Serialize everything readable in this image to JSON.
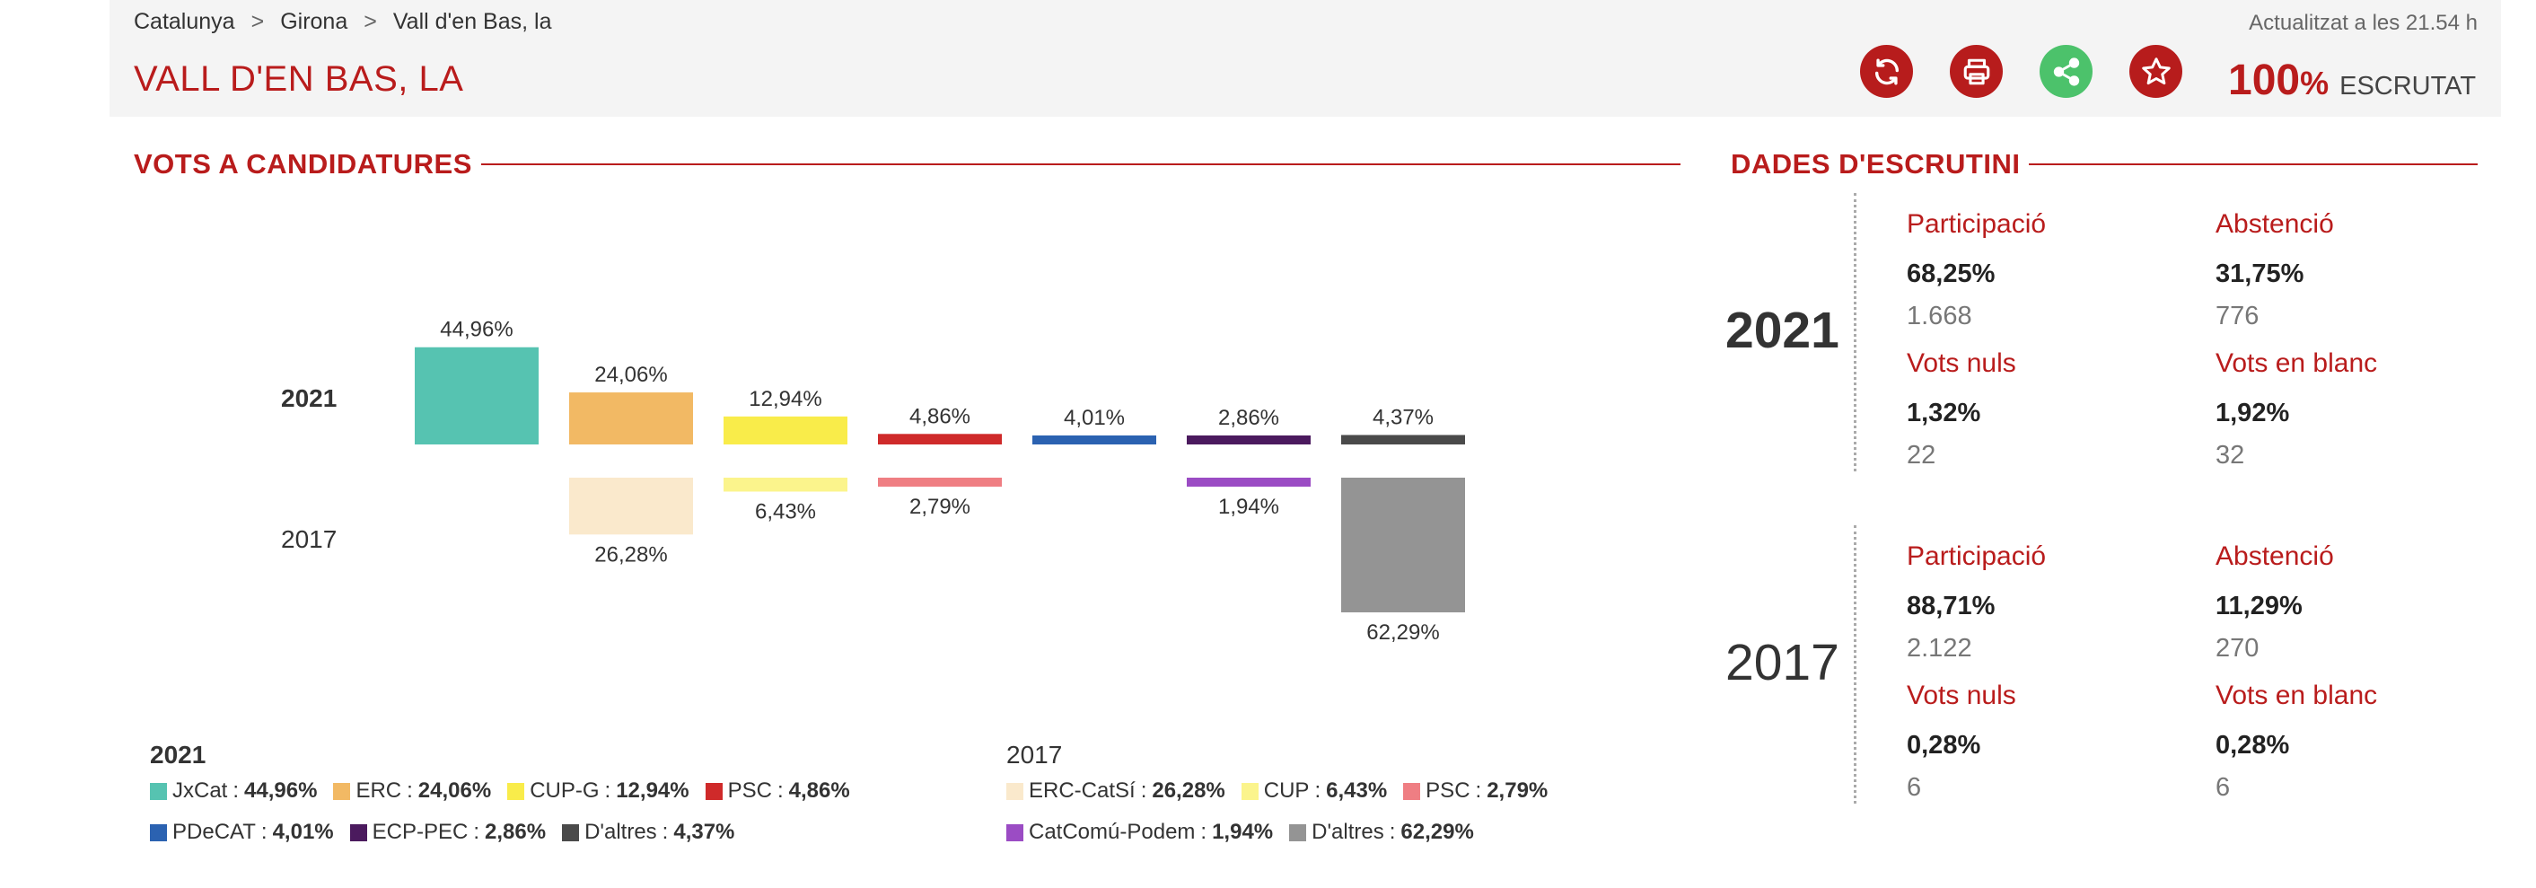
{
  "breadcrumb": [
    "Catalunya",
    "Girona",
    "Vall d'en Bas, la"
  ],
  "breadcrumb_sep": ">",
  "updated": "Actualitzat a les 21.54 h",
  "title": "VALL D'EN BAS, LA",
  "escrutat": {
    "value": "100",
    "unit": "%",
    "label": "ESCRUTAT"
  },
  "icons": [
    "refresh-icon",
    "print-icon",
    "share-icon",
    "star-icon"
  ],
  "sections": {
    "votes": "VOTS A CANDIDATURES",
    "scrutiny": "DADES D'ESCRUTINI"
  },
  "chart_data": {
    "type": "bar",
    "title": "VOTS A CANDIDATURES",
    "ylim": [
      0,
      62.29
    ],
    "series": [
      {
        "name": "2021",
        "entries": [
          {
            "party": "JxCat",
            "value": 44.96,
            "label": "44,96%",
            "color": "#56c3b1"
          },
          {
            "party": "ERC",
            "value": 24.06,
            "label": "24,06%",
            "color": "#f2b964"
          },
          {
            "party": "CUP-G",
            "value": 12.94,
            "label": "12,94%",
            "color": "#f9ec4a"
          },
          {
            "party": "PSC",
            "value": 4.86,
            "label": "4,86%",
            "color": "#cf2a2a"
          },
          {
            "party": "PDeCAT",
            "value": 4.01,
            "label": "4,01%",
            "color": "#2b62b1"
          },
          {
            "party": "ECP-PEC",
            "value": 2.86,
            "label": "2,86%",
            "color": "#4b1a5e"
          },
          {
            "party": "D'altres",
            "value": 4.37,
            "label": "4,37%",
            "color": "#4a4a4a"
          }
        ]
      },
      {
        "name": "2017",
        "entries": [
          {
            "party": "ERC-CatSí",
            "value": 26.28,
            "label": "26,28%",
            "color": "#fae9cc",
            "column": 1
          },
          {
            "party": "CUP",
            "value": 6.43,
            "label": "6,43%",
            "color": "#fbf48c",
            "column": 2
          },
          {
            "party": "PSC",
            "value": 2.79,
            "label": "2,79%",
            "color": "#ef7e83",
            "column": 3
          },
          {
            "party": "CatComú-Podem",
            "value": 1.94,
            "label": "1,94%",
            "color": "#9b4cc4",
            "column": 5
          },
          {
            "party": "D'altres",
            "value": 62.29,
            "label": "62,29%",
            "color": "#949494",
            "column": 6
          }
        ]
      }
    ]
  },
  "scrutiny": [
    {
      "year": "2021",
      "participacio": {
        "label": "Participació",
        "pct": "68,25%",
        "num": "1.668"
      },
      "abstencio": {
        "label": "Abstenció",
        "pct": "31,75%",
        "num": "776"
      },
      "nuls": {
        "label": "Vots nuls",
        "pct": "1,32%",
        "num": "22"
      },
      "blanc": {
        "label": "Vots en blanc",
        "pct": "1,92%",
        "num": "32"
      }
    },
    {
      "year": "2017",
      "participacio": {
        "label": "Participació",
        "pct": "88,71%",
        "num": "2.122"
      },
      "abstencio": {
        "label": "Abstenció",
        "pct": "11,29%",
        "num": "270"
      },
      "nuls": {
        "label": "Vots nuls",
        "pct": "0,28%",
        "num": "6"
      },
      "blanc": {
        "label": "Vots en blanc",
        "pct": "0,28%",
        "num": "6"
      }
    }
  ]
}
